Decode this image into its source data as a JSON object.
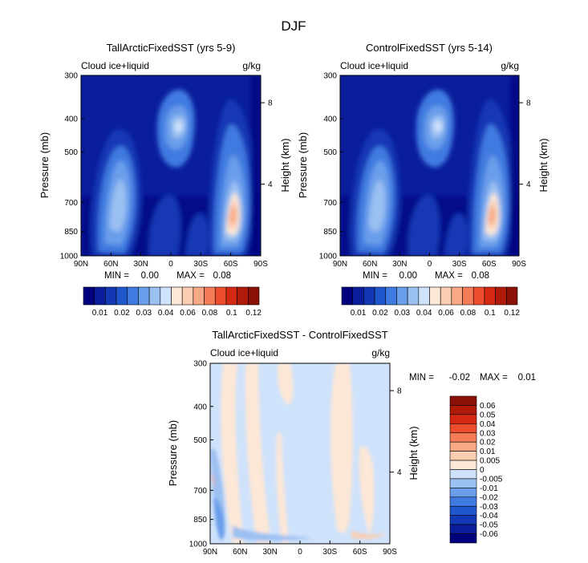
{
  "figure": {
    "season": "DJF",
    "variable": "Cloud ice+liquid",
    "units": "g/kg"
  },
  "panels": [
    {
      "title": "TallArcticFixedSST (yrs 5-9)",
      "stats": {
        "min_label": "MIN =",
        "min": "0.00",
        "max_label": "MAX =",
        "max": "0.08"
      }
    },
    {
      "title": "ControlFixedSST (yrs 5-14)",
      "stats": {
        "min_label": "MIN =",
        "min": "0.00",
        "max_label": "MAX =",
        "max": "0.08"
      }
    },
    {
      "title": "TallArcticFixedSST - ControlFixedSST",
      "stats": {
        "min_label": "MIN =",
        "min": "-0.02",
        "max_label": "MAX =",
        "max": "0.01"
      }
    }
  ],
  "axes": {
    "y_label": "Pressure (mb)",
    "y2_label": "Height (km)",
    "x_ticks": [
      "90N",
      "60N",
      "30N",
      "0",
      "30S",
      "60S",
      "90S"
    ],
    "y_ticks": [
      "300",
      "400",
      "500",
      "700",
      "850",
      "1000"
    ],
    "y2_ticks": [
      "8",
      "4"
    ]
  },
  "colorbars": {
    "abs": {
      "labels": [
        "0.01",
        "0.02",
        "0.03",
        "0.04",
        "0.06",
        "0.08",
        "0.1",
        "0.12"
      ],
      "colors": [
        "#00007f",
        "#0a1e9c",
        "#1238b5",
        "#1f57cf",
        "#3f7ae0",
        "#6a9eea",
        "#9bc0f2",
        "#cfe2fb",
        "#fde7d6",
        "#fbcdb0",
        "#f8a884",
        "#f47c56",
        "#ec4e2d",
        "#d42a13",
        "#b01a08",
        "#8a0f04"
      ]
    },
    "diff": {
      "labels": [
        "0.06",
        "0.05",
        "0.04",
        "0.03",
        "0.02",
        "0.01",
        "0.005",
        "0",
        "-0.005",
        "-0.01",
        "-0.02",
        "-0.03",
        "-0.04",
        "-0.05",
        "-0.06"
      ],
      "colors": [
        "#8a0f04",
        "#b01a08",
        "#d42a13",
        "#ec4e2d",
        "#f47c56",
        "#f8a884",
        "#fbcdb0",
        "#fde7d6",
        "#cfe2fb",
        "#9bc0f2",
        "#6a9eea",
        "#3f7ae0",
        "#1f57cf",
        "#1238b5",
        "#0a1e9c",
        "#00007f"
      ]
    }
  },
  "chart_data": [
    {
      "type": "heatmap",
      "title": "TallArcticFixedSST (yrs 5-9)",
      "subtitle": "Cloud ice+liquid",
      "units": "g/kg",
      "xlabel": "",
      "ylabel": "Pressure (mb)",
      "y2label": "Height (km)",
      "x_range": [
        90,
        -90
      ],
      "y_range": [
        300,
        1000
      ],
      "features": [
        {
          "lat": -55,
          "p": 810,
          "value": 0.08
        },
        {
          "lat": 2,
          "p": 500,
          "value": 0.04
        },
        {
          "lat": 45,
          "p": 720,
          "value": 0.04
        }
      ],
      "min": 0.0,
      "max": 0.08
    },
    {
      "type": "heatmap",
      "title": "ControlFixedSST (yrs 5-14)",
      "subtitle": "Cloud ice+liquid",
      "units": "g/kg",
      "xlabel": "",
      "ylabel": "Pressure (mb)",
      "y2label": "Height (km)",
      "x_range": [
        90,
        -90
      ],
      "y_range": [
        300,
        1000
      ],
      "features": [
        {
          "lat": -55,
          "p": 810,
          "value": 0.08
        },
        {
          "lat": 2,
          "p": 500,
          "value": 0.04
        },
        {
          "lat": 45,
          "p": 720,
          "value": 0.04
        }
      ],
      "min": 0.0,
      "max": 0.08
    },
    {
      "type": "heatmap",
      "title": "TallArcticFixedSST - ControlFixedSST",
      "subtitle": "Cloud ice+liquid",
      "units": "g/kg",
      "xlabel": "",
      "ylabel": "Pressure (mb)",
      "y2label": "Height (km)",
      "x_range": [
        90,
        -90
      ],
      "y_range": [
        300,
        1000
      ],
      "features": [
        {
          "lat": 85,
          "p": 880,
          "value": -0.01
        },
        {
          "lat": -72,
          "p": 990,
          "value": 0.005
        },
        {
          "lat": -40,
          "p": 750,
          "value": 0.005
        }
      ],
      "min": -0.02,
      "max": 0.01
    }
  ]
}
